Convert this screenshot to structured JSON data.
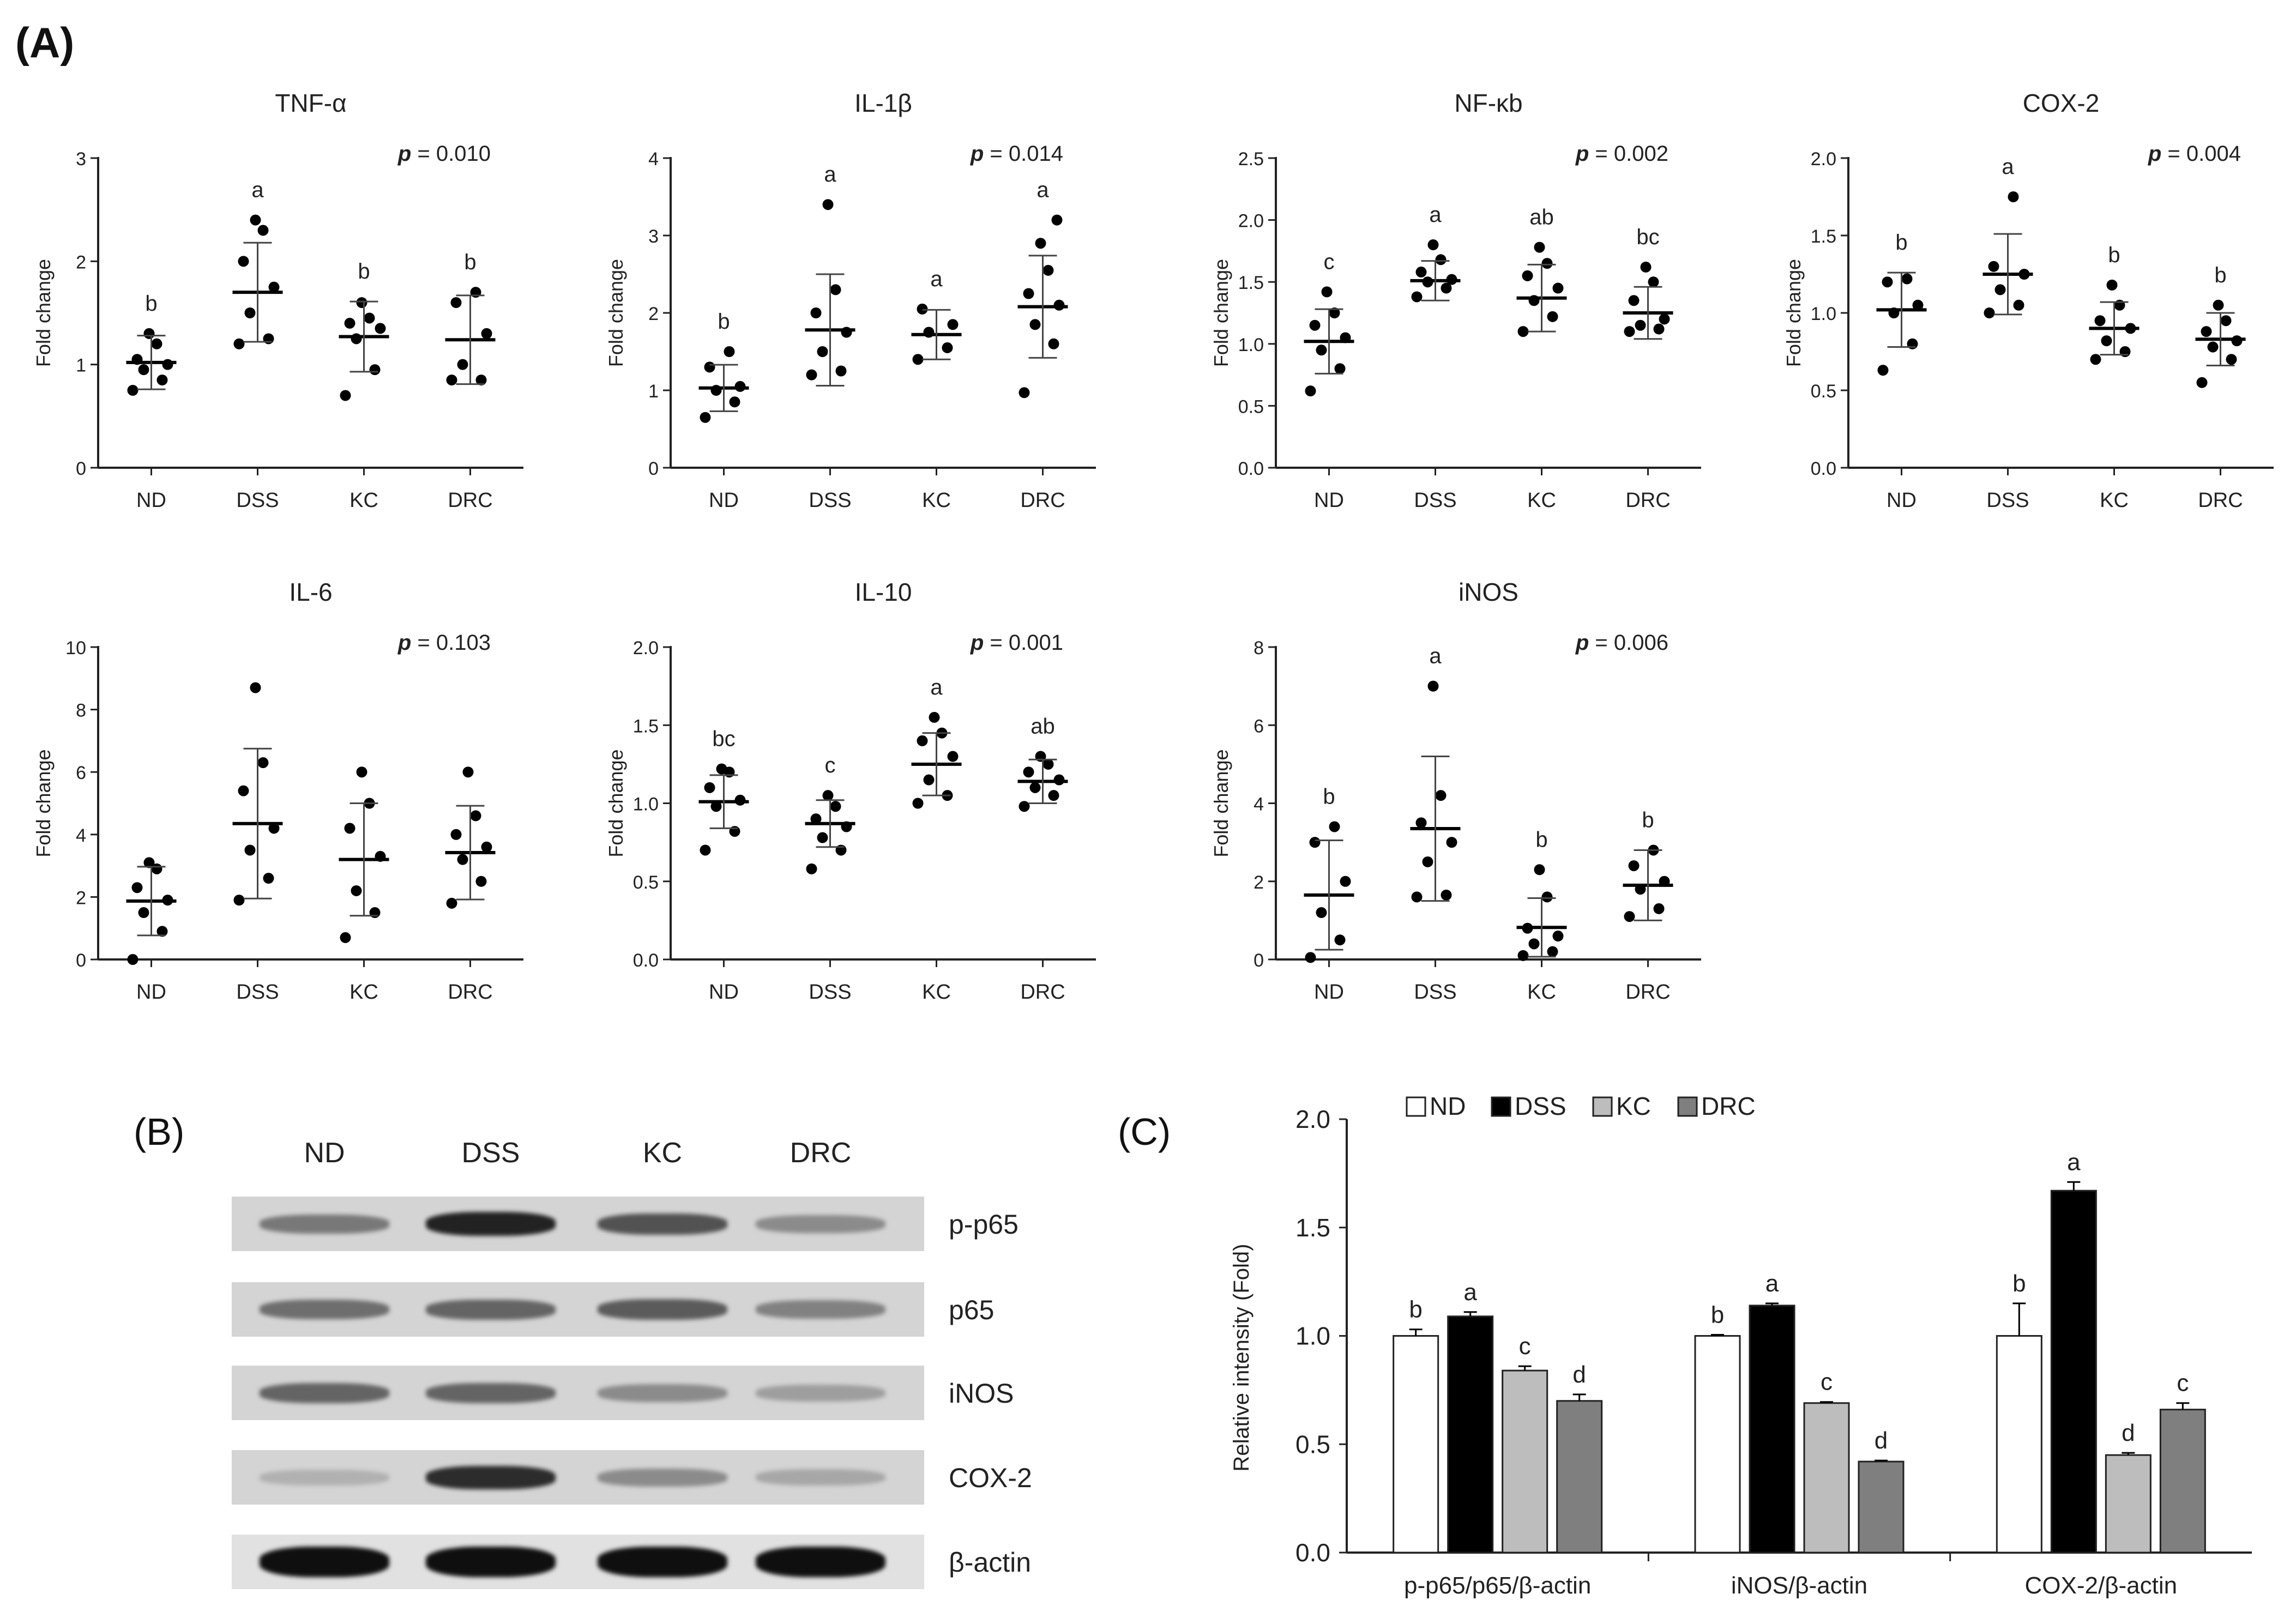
{
  "panels": {
    "A": "(A)",
    "B": "(B)",
    "C": "(C)"
  },
  "scatter_groups": [
    "ND",
    "DSS",
    "KC",
    "DRC"
  ],
  "blot": {
    "lanes": [
      "ND",
      "DSS",
      "KC",
      "DRC"
    ],
    "rows": [
      {
        "label": "p-p65",
        "intensity": [
          0.45,
          0.9,
          0.65,
          0.35
        ]
      },
      {
        "label": "p65",
        "intensity": [
          0.5,
          0.55,
          0.6,
          0.4
        ]
      },
      {
        "label": "iNOS",
        "intensity": [
          0.55,
          0.55,
          0.35,
          0.25
        ]
      },
      {
        "label": "COX-2",
        "intensity": [
          0.15,
          0.85,
          0.35,
          0.2
        ]
      },
      {
        "label": "β-actin",
        "intensity": [
          1.0,
          1.0,
          1.0,
          1.0
        ]
      }
    ]
  },
  "chart_data": [
    {
      "type": "scatter",
      "title": "TNF-α",
      "ylabel": "Fold change",
      "ylim": [
        0,
        3
      ],
      "yticks": [
        "0",
        "1",
        "2",
        "3"
      ],
      "categories": [
        "ND",
        "DSS",
        "KC",
        "DRC"
      ],
      "pvalue_prefix": "p",
      "pvalue_text": " = 0.010",
      "letters": [
        "b",
        "a",
        "b",
        "b"
      ],
      "means": [
        1.02,
        1.7,
        1.27,
        1.24
      ],
      "sd": [
        0.26,
        0.48,
        0.34,
        0.43
      ],
      "points": [
        [
          0.75,
          0.85,
          0.95,
          1.0,
          1.05,
          1.2,
          1.3
        ],
        [
          1.2,
          1.25,
          1.5,
          1.75,
          2.0,
          2.3,
          2.4
        ],
        [
          0.7,
          0.95,
          1.25,
          1.35,
          1.4,
          1.45,
          1.6
        ],
        [
          0.85,
          0.85,
          1.0,
          1.3,
          1.6,
          1.7
        ]
      ]
    },
    {
      "type": "scatter",
      "title": "IL-1β",
      "ylabel": "Fold change",
      "ylim": [
        0,
        4
      ],
      "yticks": [
        "0",
        "1",
        "2",
        "3",
        "4"
      ],
      "categories": [
        "ND",
        "DSS",
        "KC",
        "DRC"
      ],
      "pvalue_prefix": "p",
      "pvalue_text": " = 0.014",
      "letters": [
        "b",
        "a",
        "a",
        "a"
      ],
      "means": [
        1.03,
        1.78,
        1.72,
        2.08
      ],
      "sd": [
        0.3,
        0.72,
        0.32,
        0.66
      ],
      "points": [
        [
          0.65,
          0.85,
          1.0,
          1.05,
          1.3,
          1.5
        ],
        [
          1.2,
          1.25,
          1.5,
          1.75,
          2.0,
          2.3,
          3.4
        ],
        [
          1.4,
          1.55,
          1.75,
          1.85,
          2.05
        ],
        [
          0.97,
          1.6,
          1.85,
          2.1,
          2.25,
          2.55,
          2.9,
          3.2
        ]
      ]
    },
    {
      "type": "scatter",
      "title": "NF-κb",
      "ylabel": "Fold change",
      "ylim": [
        0,
        2.5
      ],
      "yticks": [
        "0.0",
        "0.5",
        "1.0",
        "1.5",
        "2.0",
        "2.5"
      ],
      "categories": [
        "ND",
        "DSS",
        "KC",
        "DRC"
      ],
      "pvalue_prefix": "p",
      "pvalue_text": " = 0.002",
      "letters": [
        "c",
        "a",
        "ab",
        "bc"
      ],
      "means": [
        1.02,
        1.51,
        1.37,
        1.25
      ],
      "sd": [
        0.26,
        0.16,
        0.27,
        0.21
      ],
      "points": [
        [
          0.62,
          0.8,
          0.95,
          1.05,
          1.15,
          1.25,
          1.42
        ],
        [
          1.38,
          1.45,
          1.5,
          1.52,
          1.58,
          1.68,
          1.8
        ],
        [
          1.1,
          1.22,
          1.35,
          1.45,
          1.55,
          1.65,
          1.78
        ],
        [
          1.1,
          1.12,
          1.15,
          1.2,
          1.35,
          1.5,
          1.62
        ]
      ]
    },
    {
      "type": "scatter",
      "title": "COX-2",
      "ylabel": "Fold change",
      "ylim": [
        0,
        2.0
      ],
      "yticks": [
        "0.0",
        "0.5",
        "1.0",
        "1.5",
        "2.0"
      ],
      "categories": [
        "ND",
        "DSS",
        "KC",
        "DRC"
      ],
      "pvalue_prefix": "p",
      "pvalue_text": " = 0.004",
      "letters": [
        "b",
        "a",
        "b",
        "b"
      ],
      "means": [
        1.02,
        1.25,
        0.9,
        0.83
      ],
      "sd": [
        0.24,
        0.26,
        0.17,
        0.17
      ],
      "points": [
        [
          0.63,
          0.8,
          1.0,
          1.05,
          1.2,
          1.22
        ],
        [
          1.0,
          1.05,
          1.15,
          1.25,
          1.3,
          1.75
        ],
        [
          0.7,
          0.75,
          0.82,
          0.9,
          0.95,
          1.05,
          1.18
        ],
        [
          0.55,
          0.7,
          0.78,
          0.82,
          0.88,
          0.95,
          1.05
        ]
      ]
    },
    {
      "type": "scatter",
      "title": "IL-6",
      "ylabel": "Fold change",
      "ylim": [
        0,
        10
      ],
      "yticks": [
        "0",
        "2",
        "4",
        "6",
        "8",
        "10"
      ],
      "categories": [
        "ND",
        "DSS",
        "KC",
        "DRC"
      ],
      "pvalue_prefix": "p",
      "pvalue_text": " = 0.103",
      "letters": [
        "",
        "",
        "",
        ""
      ],
      "means": [
        1.87,
        4.35,
        3.2,
        3.42
      ],
      "sd": [
        1.1,
        2.4,
        1.8,
        1.5
      ],
      "points": [
        [
          0.0,
          0.9,
          1.5,
          1.9,
          2.3,
          2.9,
          3.1
        ],
        [
          1.9,
          2.6,
          3.5,
          4.2,
          5.4,
          6.3,
          8.7
        ],
        [
          0.7,
          1.5,
          2.2,
          3.3,
          4.2,
          5.0,
          6.0
        ],
        [
          1.8,
          2.5,
          3.2,
          3.6,
          4.0,
          4.6,
          6.0
        ]
      ]
    },
    {
      "type": "scatter",
      "title": "IL-10",
      "ylabel": "Fold change",
      "ylim": [
        0,
        2.0
      ],
      "yticks": [
        "0.0",
        "0.5",
        "1.0",
        "1.5",
        "2.0"
      ],
      "categories": [
        "ND",
        "DSS",
        "KC",
        "DRC"
      ],
      "pvalue_prefix": "p",
      "pvalue_text": " = 0.001",
      "letters": [
        "bc",
        "c",
        "a",
        "ab"
      ],
      "means": [
        1.01,
        0.87,
        1.25,
        1.14
      ],
      "sd": [
        0.17,
        0.15,
        0.2,
        0.14
      ],
      "points": [
        [
          0.7,
          0.82,
          0.98,
          1.02,
          1.1,
          1.2,
          1.22
        ],
        [
          0.58,
          0.7,
          0.78,
          0.85,
          0.9,
          0.98,
          1.05
        ],
        [
          1.0,
          1.05,
          1.15,
          1.3,
          1.4,
          1.45,
          1.55
        ],
        [
          0.98,
          1.05,
          1.1,
          1.15,
          1.2,
          1.25,
          1.3
        ]
      ]
    },
    {
      "type": "scatter",
      "title": "iNOS",
      "ylabel": "Fold change",
      "ylim": [
        0,
        8
      ],
      "yticks": [
        "0",
        "2",
        "4",
        "6",
        "8"
      ],
      "categories": [
        "ND",
        "DSS",
        "KC",
        "DRC"
      ],
      "pvalue_prefix": "p",
      "pvalue_text": " = 0.006",
      "letters": [
        "b",
        "a",
        "b",
        "b"
      ],
      "means": [
        1.65,
        3.35,
        0.82,
        1.9
      ],
      "sd": [
        1.4,
        1.85,
        0.75,
        0.9
      ],
      "points": [
        [
          0.05,
          0.5,
          1.2,
          2.0,
          3.0,
          3.4
        ],
        [
          1.6,
          1.65,
          2.5,
          3.0,
          3.5,
          4.2,
          7.0
        ],
        [
          0.1,
          0.2,
          0.4,
          0.6,
          0.8,
          1.6,
          2.3
        ],
        [
          1.1,
          1.3,
          1.8,
          2.0,
          2.4,
          2.8
        ]
      ]
    },
    {
      "type": "bar",
      "title": "",
      "ylabel": "Relative intensity (Fold)",
      "ylim": [
        0,
        2.0
      ],
      "yticks": [
        "0.0",
        "0.5",
        "1.0",
        "1.5",
        "2.0"
      ],
      "categories": [
        "p-p65/p65/β-actin",
        "iNOS/β-actin",
        "COX-2/β-actin"
      ],
      "series": [
        {
          "name": "ND",
          "color": "#ffffff",
          "values": [
            1.0,
            1.0,
            1.0
          ],
          "err": [
            0.03,
            0.005,
            0.15
          ],
          "letters": [
            "b",
            "b",
            "b"
          ]
        },
        {
          "name": "DSS",
          "color": "#000000",
          "values": [
            1.09,
            1.14,
            1.67
          ],
          "err": [
            0.02,
            0.01,
            0.04
          ],
          "letters": [
            "a",
            "a",
            "a"
          ]
        },
        {
          "name": "KC",
          "color": "#bdbdbd",
          "values": [
            0.84,
            0.69,
            0.45
          ],
          "err": [
            0.02,
            0.005,
            0.01
          ],
          "letters": [
            "c",
            "c",
            "d"
          ]
        },
        {
          "name": "DRC",
          "color": "#7f7f7f",
          "values": [
            0.7,
            0.42,
            0.66
          ],
          "err": [
            0.03,
            0.005,
            0.03
          ],
          "letters": [
            "d",
            "d",
            "c"
          ]
        }
      ]
    }
  ]
}
